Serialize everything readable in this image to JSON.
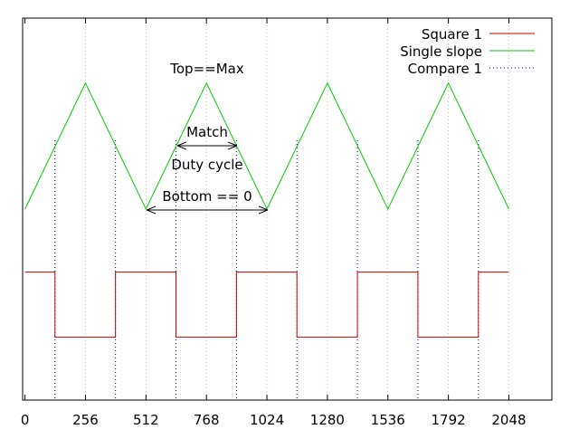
{
  "chart_data": {
    "type": "line",
    "title": "",
    "xlabel": "",
    "ylabel": "",
    "xlim": [
      -10,
      2230
    ],
    "ylim": [
      0,
      1
    ],
    "x_ticks": [
      "0",
      "256",
      "512",
      "768",
      "1024",
      "1280",
      "1536",
      "1792",
      "2048"
    ],
    "x_tick_values": [
      0,
      256,
      512,
      768,
      1024,
      1280,
      1536,
      1792,
      2048
    ],
    "grid_x": true,
    "legend_position": "top-right",
    "series": [
      {
        "name": "Square 1",
        "color": "#cc0000",
        "style": "solid",
        "points": [
          [
            0,
            0.335
          ],
          [
            127,
            0.335
          ],
          [
            127,
            0.165
          ],
          [
            383,
            0.165
          ],
          [
            383,
            0.335
          ],
          [
            639,
            0.335
          ],
          [
            639,
            0.165
          ],
          [
            895,
            0.165
          ],
          [
            895,
            0.335
          ],
          [
            1151,
            0.335
          ],
          [
            1151,
            0.165
          ],
          [
            1407,
            0.165
          ],
          [
            1407,
            0.335
          ],
          [
            1663,
            0.335
          ],
          [
            1663,
            0.165
          ],
          [
            1919,
            0.165
          ],
          [
            1919,
            0.335
          ],
          [
            2048,
            0.335
          ]
        ]
      },
      {
        "name": "Single slope",
        "color": "#00cc00",
        "style": "solid",
        "points": [
          [
            0,
            0.5
          ],
          [
            256,
            0.83
          ],
          [
            512,
            0.5
          ],
          [
            768,
            0.83
          ],
          [
            1024,
            0.5
          ],
          [
            1280,
            0.83
          ],
          [
            1536,
            0.5
          ],
          [
            1792,
            0.83
          ],
          [
            2048,
            0.5
          ]
        ]
      },
      {
        "name": "Compare 1",
        "color": "#000099",
        "style": "dotted",
        "x": [
          127,
          383,
          639,
          895,
          1151,
          1407,
          1663,
          1919
        ]
      }
    ],
    "annotations": {
      "top": "Top==Max",
      "match": "Match",
      "duty": "Duty cycle",
      "bottom": "Bottom == 0"
    }
  }
}
